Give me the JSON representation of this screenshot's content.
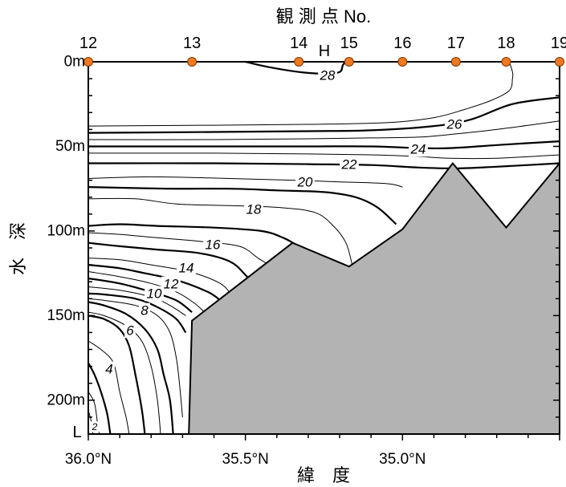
{
  "chart_data": {
    "type": "contour",
    "title": "観 測 点 No.",
    "xlabel": "緯　度",
    "ylabel": "水　深",
    "x_ticks": [
      "36.0°N",
      "35.5°N",
      "35.0°N"
    ],
    "y_ticks": [
      "0m",
      "50m",
      "100m",
      "150m",
      "200m"
    ],
    "ylim": [
      0,
      220
    ],
    "xlim": [
      36.0,
      34.5
    ],
    "marker_labels": {
      "H": "H",
      "L": "L"
    },
    "stations": [
      {
        "label": "12",
        "lat": 36.0
      },
      {
        "label": "13",
        "lat": 35.67
      },
      {
        "label": "14",
        "lat": 35.33
      },
      {
        "label": "15",
        "lat": 35.17
      },
      {
        "label": "16",
        "lat": 35.0
      },
      {
        "label": "17",
        "lat": 34.83
      },
      {
        "label": "18",
        "lat": 34.67
      },
      {
        "label": "19",
        "lat": 34.5
      }
    ],
    "bottom_profile": [
      {
        "lat": 35.68,
        "depth": 220
      },
      {
        "lat": 35.67,
        "depth": 153
      },
      {
        "lat": 35.35,
        "depth": 107
      },
      {
        "lat": 35.17,
        "depth": 121
      },
      {
        "lat": 35.0,
        "depth": 99
      },
      {
        "lat": 34.84,
        "depth": 60
      },
      {
        "lat": 34.67,
        "depth": 98
      },
      {
        "lat": 34.5,
        "depth": 60
      },
      {
        "lat": 34.5,
        "depth": 220
      }
    ],
    "isotherm_labels": [
      "28",
      "26",
      "24",
      "22",
      "20",
      "18",
      "16",
      "14",
      "12",
      "10",
      "8",
      "6",
      "4",
      "2"
    ],
    "isotherms": [
      {
        "temp": 28,
        "bold": true,
        "points": [
          [
            35.5,
            0
          ],
          [
            35.43,
            3
          ],
          [
            35.33,
            6
          ],
          [
            35.25,
            7
          ],
          [
            35.2,
            6
          ],
          [
            35.19,
            2
          ],
          [
            35.18,
            0
          ]
        ]
      },
      {
        "temp": 27,
        "bold": false,
        "points": [
          [
            36.0,
            38
          ],
          [
            35.6,
            37.5
          ],
          [
            35.3,
            37
          ],
          [
            35.05,
            36
          ],
          [
            34.9,
            33
          ],
          [
            34.8,
            28
          ],
          [
            34.72,
            23
          ],
          [
            34.66,
            17
          ],
          [
            34.65,
            10
          ],
          [
            34.65,
            6
          ],
          [
            34.66,
            0
          ]
        ]
      },
      {
        "temp": 26,
        "bold": true,
        "points": [
          [
            36.0,
            42
          ],
          [
            35.6,
            41.5
          ],
          [
            35.3,
            41
          ],
          [
            35.1,
            40.5
          ],
          [
            34.9,
            38
          ],
          [
            34.78,
            34
          ],
          [
            34.65,
            25
          ],
          [
            34.5,
            21
          ]
        ]
      },
      {
        "temp": 25,
        "bold": false,
        "points": [
          [
            36.0,
            46
          ],
          [
            35.6,
            46
          ],
          [
            35.3,
            45.5
          ],
          [
            35.1,
            45
          ],
          [
            34.95,
            44.5
          ],
          [
            34.85,
            43
          ],
          [
            34.7,
            40
          ],
          [
            34.5,
            35
          ]
        ]
      },
      {
        "temp": 24,
        "bold": true,
        "points": [
          [
            36.0,
            50
          ],
          [
            35.6,
            50
          ],
          [
            35.3,
            50
          ],
          [
            35.1,
            50
          ],
          [
            34.95,
            51
          ],
          [
            34.85,
            51
          ],
          [
            34.68,
            49
          ],
          [
            34.5,
            47
          ]
        ]
      },
      {
        "temp": 23,
        "bold": false,
        "points": [
          [
            36.0,
            54
          ],
          [
            35.6,
            54
          ],
          [
            35.3,
            54.5
          ],
          [
            35.1,
            55
          ],
          [
            34.95,
            56
          ],
          [
            34.85,
            57
          ],
          [
            34.7,
            57
          ],
          [
            34.5,
            55
          ]
        ]
      },
      {
        "temp": 22,
        "bold": true,
        "points": [
          [
            36.0,
            60
          ],
          [
            35.6,
            60
          ],
          [
            35.3,
            60.5
          ],
          [
            35.1,
            61
          ],
          [
            34.95,
            62.5
          ],
          [
            34.83,
            63
          ],
          [
            34.7,
            62
          ],
          [
            34.5,
            60
          ]
        ]
      },
      {
        "temp": 21,
        "bold": false,
        "points": [
          [
            36.0,
            69
          ],
          [
            35.8,
            68
          ],
          [
            35.55,
            69
          ],
          [
            35.35,
            70
          ],
          [
            35.2,
            71
          ],
          [
            35.05,
            72
          ],
          [
            35.0,
            74
          ]
        ]
      },
      {
        "temp": 20,
        "bold": true,
        "points": [
          [
            36.0,
            74
          ],
          [
            35.75,
            75
          ],
          [
            35.55,
            75
          ],
          [
            35.4,
            76
          ],
          [
            35.25,
            77
          ],
          [
            35.15,
            80
          ],
          [
            35.08,
            86
          ],
          [
            35.02,
            96
          ]
        ]
      },
      {
        "temp": 19,
        "bold": false,
        "points": [
          [
            36.0,
            81
          ],
          [
            35.85,
            81
          ],
          [
            35.72,
            84
          ],
          [
            35.55,
            85
          ],
          [
            35.4,
            86
          ],
          [
            35.28,
            89
          ],
          [
            35.22,
            97
          ],
          [
            35.18,
            107
          ],
          [
            35.16,
            120
          ]
        ]
      },
      {
        "temp": 18,
        "bold": true,
        "points": [
          [
            36.0,
            97
          ],
          [
            35.9,
            96
          ],
          [
            35.78,
            97
          ],
          [
            35.6,
            98
          ],
          [
            35.45,
            100
          ],
          [
            35.38,
            104
          ],
          [
            35.34,
            108
          ]
        ]
      },
      {
        "temp": 17,
        "bold": false,
        "points": [
          [
            36.0,
            101
          ],
          [
            35.9,
            102
          ],
          [
            35.78,
            104
          ],
          [
            35.65,
            106
          ],
          [
            35.52,
            109
          ],
          [
            35.46,
            116
          ],
          [
            35.42,
            121
          ],
          [
            35.4,
            127
          ]
        ]
      },
      {
        "temp": 16,
        "bold": true,
        "points": [
          [
            36.0,
            107
          ],
          [
            35.9,
            109
          ],
          [
            35.78,
            111
          ],
          [
            35.65,
            113
          ],
          [
            35.55,
            118
          ],
          [
            35.5,
            126
          ],
          [
            35.47,
            133
          ]
        ]
      },
      {
        "temp": 15,
        "bold": false,
        "points": [
          [
            36.0,
            116
          ],
          [
            35.9,
            117
          ],
          [
            35.8,
            120
          ],
          [
            35.68,
            124
          ],
          [
            35.58,
            131
          ],
          [
            35.54,
            139
          ]
        ]
      },
      {
        "temp": 14,
        "bold": true,
        "points": [
          [
            36.0,
            120
          ],
          [
            35.9,
            122
          ],
          [
            35.82,
            125
          ],
          [
            35.72,
            129
          ],
          [
            35.62,
            136
          ],
          [
            35.58,
            141
          ]
        ]
      },
      {
        "temp": 13,
        "bold": false,
        "points": [
          [
            36.0,
            124
          ],
          [
            35.9,
            127
          ],
          [
            35.8,
            131
          ],
          [
            35.72,
            136
          ],
          [
            35.66,
            143
          ],
          [
            35.62,
            150
          ]
        ]
      },
      {
        "temp": 12,
        "bold": true,
        "points": [
          [
            36.0,
            128
          ],
          [
            35.9,
            131
          ],
          [
            35.8,
            136
          ],
          [
            35.72,
            141
          ],
          [
            35.67,
            148
          ]
        ]
      },
      {
        "temp": 11,
        "bold": false,
        "points": [
          [
            36.0,
            133
          ],
          [
            35.9,
            135
          ],
          [
            35.8,
            139
          ],
          [
            35.74,
            144
          ],
          [
            35.69,
            150
          ]
        ]
      },
      {
        "temp": 10,
        "bold": true,
        "points": [
          [
            36.0,
            137
          ],
          [
            35.95,
            137.5
          ],
          [
            35.85,
            140
          ],
          [
            35.78,
            145
          ],
          [
            35.72,
            152
          ],
          [
            35.69,
            160
          ]
        ]
      },
      {
        "temp": 9,
        "bold": false,
        "points": [
          [
            36.0,
            140
          ],
          [
            35.95,
            141
          ],
          [
            35.85,
            144
          ],
          [
            35.78,
            150
          ],
          [
            35.74,
            160
          ],
          [
            35.72,
            175
          ],
          [
            35.71,
            190
          ],
          [
            35.7,
            210
          ]
        ]
      },
      {
        "temp": 8,
        "bold": true,
        "points": [
          [
            36.0,
            142
          ],
          [
            35.95,
            144
          ],
          [
            35.88,
            149
          ],
          [
            35.82,
            158
          ],
          [
            35.78,
            170
          ],
          [
            35.76,
            185
          ],
          [
            35.74,
            200
          ],
          [
            35.73,
            220
          ]
        ]
      },
      {
        "temp": 7,
        "bold": false,
        "points": [
          [
            36.0,
            148
          ],
          [
            35.95,
            150
          ],
          [
            35.88,
            156
          ],
          [
            35.83,
            165
          ],
          [
            35.8,
            180
          ],
          [
            35.78,
            200
          ],
          [
            35.77,
            220
          ]
        ]
      },
      {
        "temp": 6,
        "bold": true,
        "points": [
          [
            36.0,
            150
          ],
          [
            35.95,
            152
          ],
          [
            35.9,
            158
          ],
          [
            35.87,
            168
          ],
          [
            35.85,
            185
          ],
          [
            35.83,
            205
          ],
          [
            35.82,
            220
          ]
        ]
      },
      {
        "temp": 5,
        "bold": false,
        "points": [
          [
            36.0,
            165
          ],
          [
            35.96,
            170
          ],
          [
            35.92,
            178
          ],
          [
            35.9,
            195
          ],
          [
            35.88,
            210
          ],
          [
            35.87,
            220
          ]
        ]
      },
      {
        "temp": 4,
        "bold": true,
        "points": [
          [
            36.0,
            178
          ],
          [
            35.98,
            185
          ],
          [
            35.96,
            195
          ],
          [
            35.94,
            208
          ],
          [
            35.93,
            220
          ]
        ]
      },
      {
        "temp": 3,
        "bold": false,
        "points": [
          [
            36.0,
            195
          ],
          [
            35.98,
            202
          ],
          [
            35.97,
            215
          ],
          [
            35.965,
            220
          ]
        ]
      },
      {
        "temp": 2,
        "bold": false,
        "points": [
          [
            36.0,
            206
          ],
          [
            35.99,
            213
          ],
          [
            35.985,
            220
          ]
        ]
      }
    ]
  }
}
